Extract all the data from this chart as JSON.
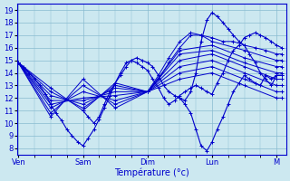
{
  "xlabel": "Température (°c)",
  "background_color": "#cce8f0",
  "line_color": "#0000cc",
  "grid_color": "#88bbd0",
  "ylim": [
    7.5,
    19.5
  ],
  "yticks": [
    8,
    9,
    10,
    11,
    12,
    13,
    14,
    15,
    16,
    17,
    18,
    19
  ],
  "day_labels": [
    "Ven",
    "Sam",
    "Dim",
    "Lun",
    "M"
  ],
  "day_ticks": [
    0,
    1,
    2,
    3,
    4
  ],
  "xlim": [
    -0.02,
    4.15
  ],
  "detail_curve": {
    "x": [
      0.0,
      0.08,
      0.17,
      0.25,
      0.33,
      0.42,
      0.5,
      0.58,
      0.67,
      0.75,
      0.83,
      0.92,
      1.0,
      1.08,
      1.17,
      1.25,
      1.33,
      1.42,
      1.5,
      1.58,
      1.67,
      1.75,
      1.83,
      1.92,
      2.0,
      2.08,
      2.17,
      2.25,
      2.33,
      2.42,
      2.5,
      2.58,
      2.67,
      2.75,
      2.83,
      2.92,
      3.0,
      3.08,
      3.17,
      3.25,
      3.33,
      3.42,
      3.5,
      3.58,
      3.67,
      3.75,
      3.83,
      3.92,
      4.0,
      4.08
    ],
    "y": [
      14.8,
      14.5,
      14.0,
      13.5,
      13.0,
      12.3,
      11.5,
      10.8,
      10.2,
      9.5,
      9.0,
      8.5,
      8.2,
      8.8,
      9.5,
      10.3,
      11.2,
      12.2,
      13.2,
      14.0,
      14.8,
      15.0,
      14.8,
      14.5,
      14.2,
      13.5,
      12.8,
      12.0,
      11.5,
      11.8,
      12.2,
      12.5,
      12.8,
      13.0,
      12.8,
      12.5,
      12.3,
      13.2,
      14.0,
      15.0,
      15.8,
      16.2,
      16.8,
      17.0,
      17.2,
      17.0,
      16.8,
      16.5,
      16.2,
      16.0
    ]
  },
  "fan_lines": [
    {
      "x": [
        0.0,
        0.5,
        1.0,
        1.5,
        2.0,
        2.17,
        2.33,
        2.5,
        2.67,
        2.83,
        3.0,
        3.17,
        3.33,
        3.5,
        3.67,
        3.83,
        4.0,
        4.08
      ],
      "y": [
        14.8,
        12.8,
        11.0,
        13.2,
        12.5,
        13.8,
        15.2,
        16.5,
        17.2,
        17.0,
        16.8,
        16.5,
        16.5,
        16.2,
        16.0,
        15.8,
        15.5,
        15.5
      ]
    },
    {
      "x": [
        0.0,
        0.5,
        1.0,
        1.5,
        2.0,
        2.17,
        2.33,
        2.5,
        2.67,
        2.83,
        3.0,
        3.5,
        4.0,
        4.08
      ],
      "y": [
        14.8,
        12.5,
        11.2,
        13.0,
        12.5,
        13.5,
        14.8,
        16.0,
        17.0,
        17.0,
        16.5,
        15.8,
        15.0,
        15.0
      ]
    },
    {
      "x": [
        0.0,
        0.5,
        1.0,
        1.5,
        2.0,
        2.5,
        3.0,
        3.5,
        4.0,
        4.08
      ],
      "y": [
        14.8,
        12.2,
        11.5,
        12.8,
        12.5,
        15.8,
        16.2,
        15.2,
        14.5,
        14.5
      ]
    },
    {
      "x": [
        0.0,
        0.5,
        1.0,
        1.5,
        2.0,
        2.5,
        3.0,
        3.5,
        4.0,
        4.08
      ],
      "y": [
        14.8,
        11.8,
        11.8,
        12.5,
        12.5,
        15.5,
        15.8,
        14.8,
        14.0,
        14.0
      ]
    },
    {
      "x": [
        0.0,
        0.5,
        1.0,
        1.5,
        2.0,
        2.5,
        3.0,
        3.5,
        4.0,
        4.08
      ],
      "y": [
        14.8,
        11.5,
        12.0,
        12.2,
        12.5,
        15.0,
        15.5,
        14.5,
        13.5,
        13.5
      ]
    },
    {
      "x": [
        0.0,
        0.5,
        1.0,
        1.5,
        2.0,
        2.5,
        3.0,
        3.5,
        4.0,
        4.08
      ],
      "y": [
        14.8,
        11.2,
        12.5,
        11.8,
        12.5,
        14.5,
        15.0,
        14.0,
        13.0,
        13.0
      ]
    },
    {
      "x": [
        0.0,
        0.5,
        1.0,
        1.5,
        2.0,
        2.5,
        3.0,
        3.5,
        4.0,
        4.08
      ],
      "y": [
        14.8,
        10.8,
        13.0,
        11.5,
        12.5,
        14.0,
        14.5,
        13.5,
        12.5,
        12.5
      ]
    },
    {
      "x": [
        0.0,
        0.5,
        1.0,
        1.5,
        2.0,
        2.5,
        3.0,
        3.5,
        4.0,
        4.08
      ],
      "y": [
        14.8,
        10.5,
        13.5,
        11.2,
        12.5,
        13.5,
        14.0,
        13.0,
        12.0,
        12.0
      ]
    }
  ],
  "detail_curve2": {
    "x": [
      1.0,
      1.08,
      1.17,
      1.25,
      1.33,
      1.42,
      1.5,
      1.58,
      1.67,
      1.75,
      1.83,
      1.92,
      2.0,
      2.08,
      2.17,
      2.25,
      2.33,
      2.42,
      2.5,
      2.58,
      2.67,
      2.75,
      2.83,
      2.92,
      3.0,
      3.08,
      3.17,
      3.25,
      3.33,
      3.42,
      3.5,
      3.58,
      3.67,
      3.75,
      3.83,
      3.92,
      4.0,
      4.08
    ],
    "y": [
      11.0,
      10.5,
      10.0,
      10.5,
      11.5,
      12.5,
      13.2,
      13.8,
      14.5,
      15.0,
      15.2,
      15.0,
      14.8,
      14.5,
      13.8,
      13.0,
      12.5,
      12.2,
      12.0,
      11.8,
      12.5,
      14.0,
      16.5,
      18.2,
      18.8,
      18.5,
      18.0,
      17.5,
      17.0,
      16.5,
      16.2,
      15.5,
      14.8,
      14.0,
      13.5,
      13.0,
      13.8,
      13.8
    ]
  },
  "detail_curve3": {
    "x": [
      2.5,
      2.58,
      2.67,
      2.75,
      2.83,
      2.92,
      3.0,
      3.08,
      3.17,
      3.25,
      3.33,
      3.42,
      3.5,
      3.58,
      3.67,
      3.75,
      3.83,
      3.92,
      4.0,
      4.08
    ],
    "y": [
      12.0,
      11.5,
      10.8,
      9.5,
      8.2,
      7.8,
      8.5,
      9.5,
      10.5,
      11.5,
      12.5,
      13.2,
      13.8,
      13.5,
      13.2,
      13.0,
      13.8,
      13.5,
      13.8,
      13.8
    ]
  }
}
